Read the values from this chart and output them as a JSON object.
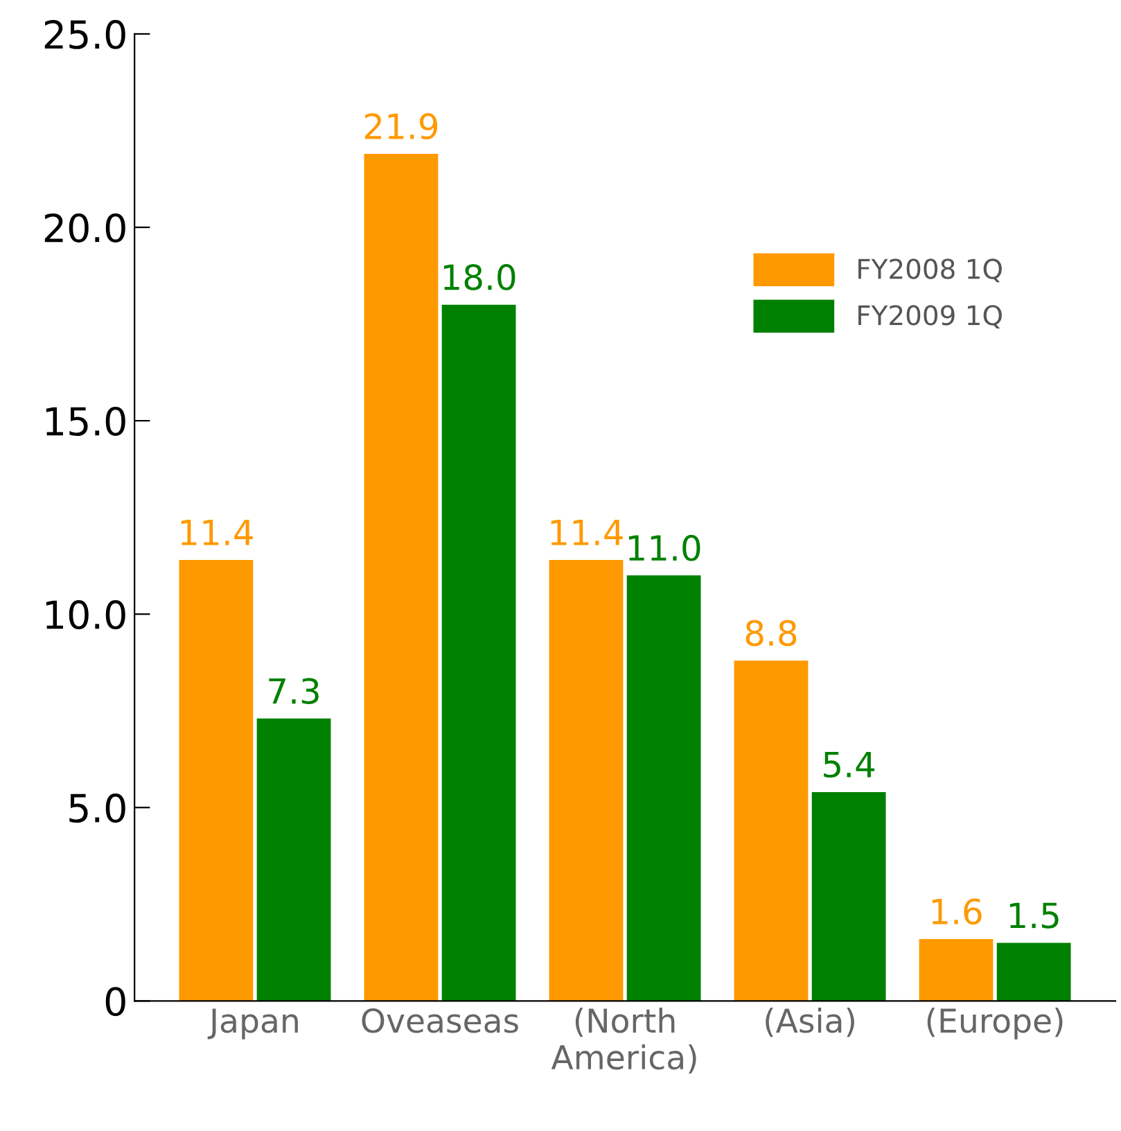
{
  "chart_data": {
    "type": "bar",
    "categories": [
      "Japan",
      "Oveaseas",
      "(North\nAmerica)",
      "(Asia)",
      "(Europe)"
    ],
    "series": [
      {
        "name": "FY2008 1Q",
        "color": "#ff9900",
        "values": [
          11.4,
          21.9,
          11.4,
          8.8,
          1.6
        ],
        "value_labels": [
          "11.4",
          "21.9",
          "11.4",
          "8.8",
          "1.6"
        ]
      },
      {
        "name": "FY2009 1Q",
        "color": "#008000",
        "values": [
          7.3,
          18.0,
          11.0,
          5.4,
          1.5
        ],
        "value_labels": [
          "7.3",
          "18.0",
          "11.0",
          "5.4",
          "1.5"
        ]
      }
    ],
    "ylim": [
      0,
      25
    ],
    "yticks": [
      0,
      {
        "value": 5,
        "label": "5.0"
      },
      {
        "value": 10,
        "label": "10.0"
      },
      {
        "value": 15,
        "label": "15.0"
      },
      {
        "value": 20,
        "label": "20.0"
      },
      {
        "value": 25,
        "label": "25.0"
      }
    ],
    "legend": "top right",
    "grid": false
  }
}
